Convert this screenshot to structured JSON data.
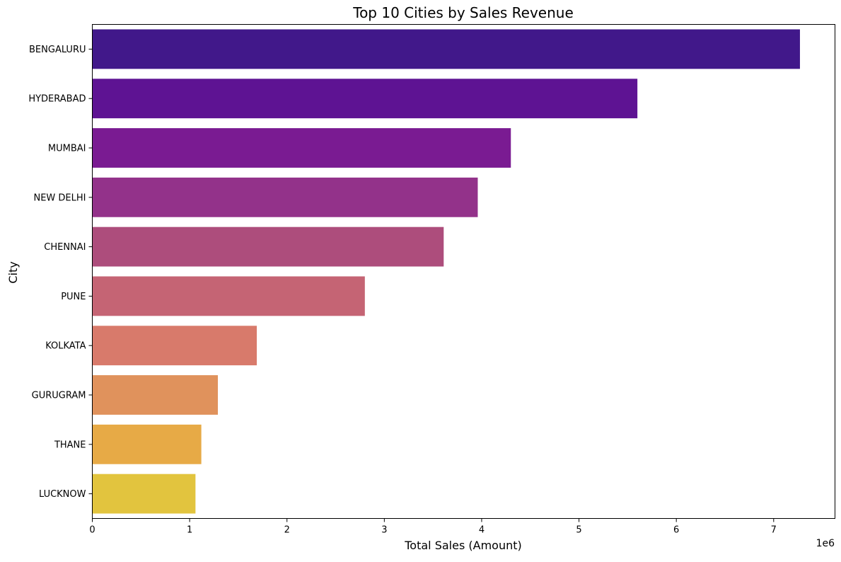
{
  "chart_data": {
    "type": "bar",
    "orientation": "horizontal",
    "title": "Top 10 Cities by Sales Revenue",
    "xlabel": "Total Sales (Amount)",
    "ylabel": "City",
    "x_offset_label": "1e6",
    "x_scale": 1000000,
    "xlim": [
      0,
      7.63
    ],
    "x_ticks": [
      0,
      1,
      2,
      3,
      4,
      5,
      6,
      7
    ],
    "categories": [
      "BENGALURU",
      "HYDERABAD",
      "MUMBAI",
      "NEW DELHI",
      "CHENNAI",
      "PUNE",
      "KOLKATA",
      "GURUGRAM",
      "THANE",
      "LUCKNOW"
    ],
    "values": [
      7.27,
      5.6,
      4.3,
      3.96,
      3.61,
      2.8,
      1.69,
      1.29,
      1.12,
      1.06
    ],
    "colors": [
      "#41188a",
      "#5e1393",
      "#7a1b92",
      "#93328a",
      "#ad4d7c",
      "#c56474",
      "#d87a6b",
      "#e0925c",
      "#e7aa46",
      "#e2c43e"
    ],
    "grid": false,
    "legend": "none"
  }
}
